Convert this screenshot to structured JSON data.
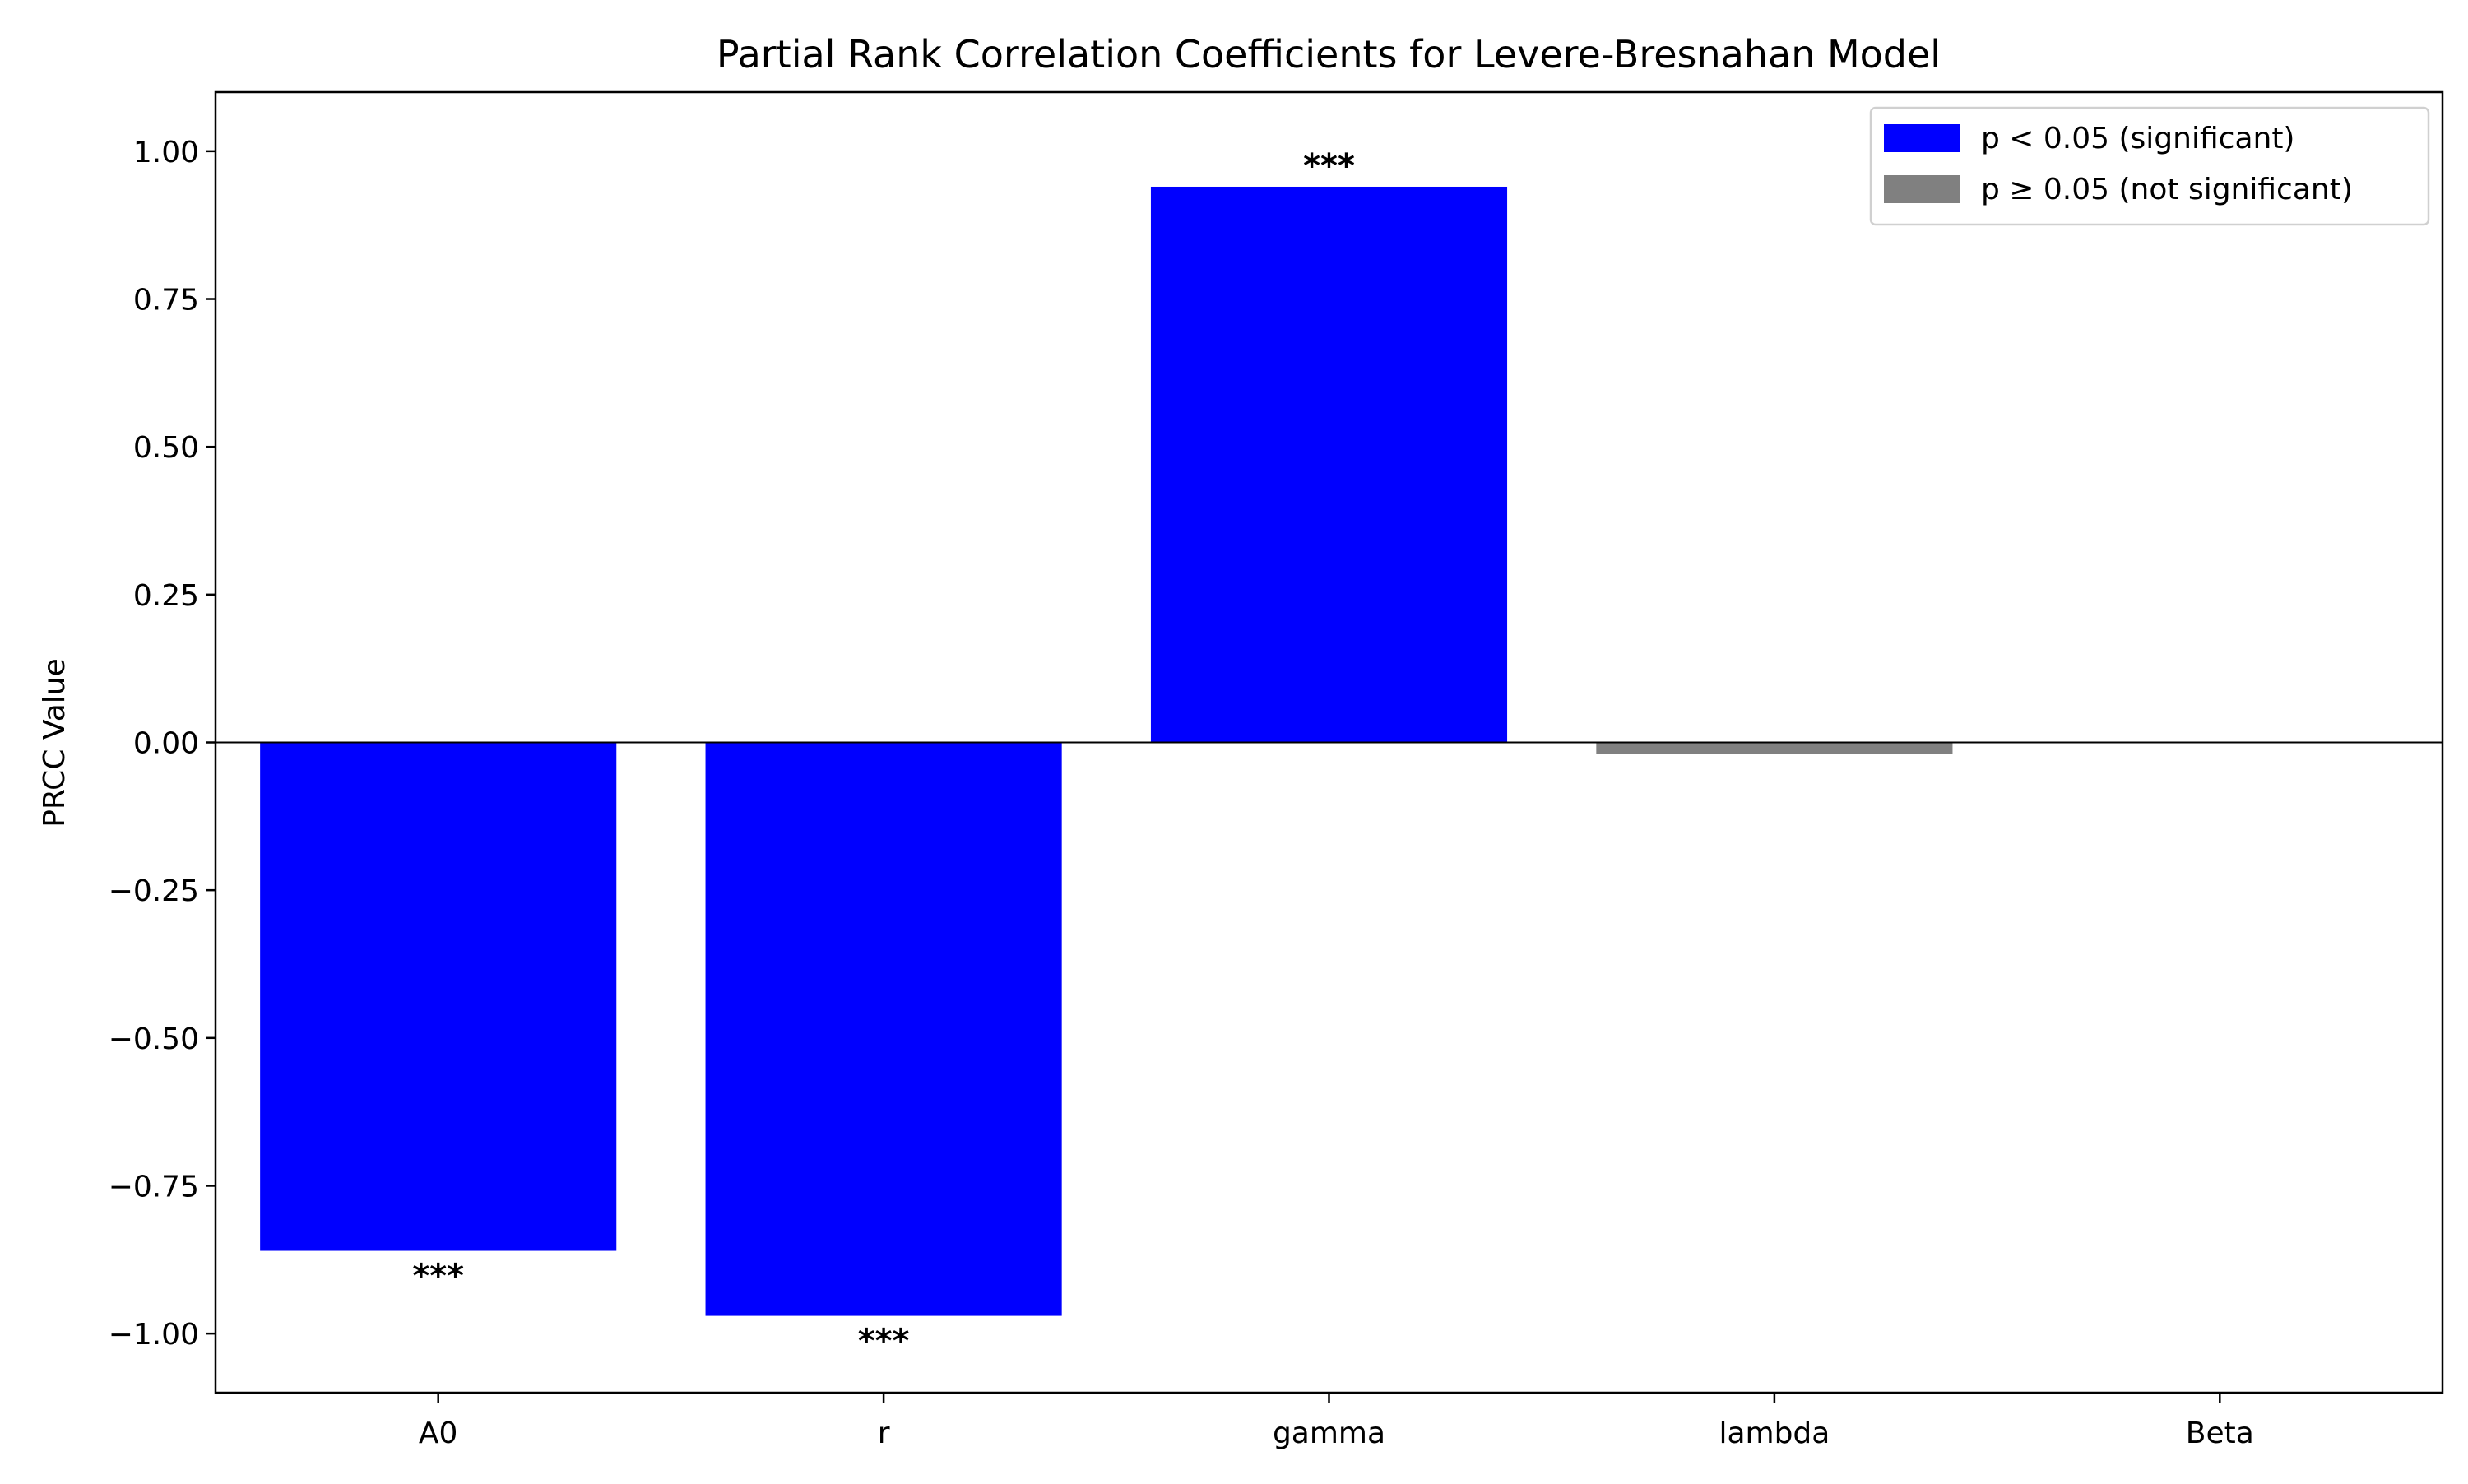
{
  "chart_data": {
    "type": "bar",
    "title": "Partial Rank Correlation Coefficients for Levere-Bresnahan Model",
    "xlabel": "",
    "ylabel": "PRCC Value",
    "categories": [
      "A0",
      "r",
      "gamma",
      "lambda",
      "Beta"
    ],
    "values": [
      -0.86,
      -0.97,
      0.94,
      -0.02,
      0.0
    ],
    "significant": [
      true,
      true,
      true,
      false,
      false
    ],
    "annotations": [
      "***",
      "***",
      "***",
      "",
      ""
    ],
    "ylim": [
      -1.1,
      1.1
    ],
    "yticks": [
      1.0,
      0.75,
      0.5,
      0.25,
      0.0,
      -0.25,
      -0.5,
      -0.75,
      -1.0
    ],
    "ytick_labels": [
      "1.00",
      "0.75",
      "0.50",
      "0.25",
      "0.00",
      "−0.25",
      "−0.50",
      "−0.75",
      "−1.00"
    ],
    "grid": false,
    "legend_position": "top-right",
    "legend": [
      {
        "label": "p < 0.05 (significant)",
        "color": "#0000ff"
      },
      {
        "label": "p ≥ 0.05 (not significant)",
        "color": "#808080"
      }
    ],
    "colors": {
      "significant": "#0000ff",
      "not_significant": "#808080",
      "zero_line": "#000000"
    }
  }
}
